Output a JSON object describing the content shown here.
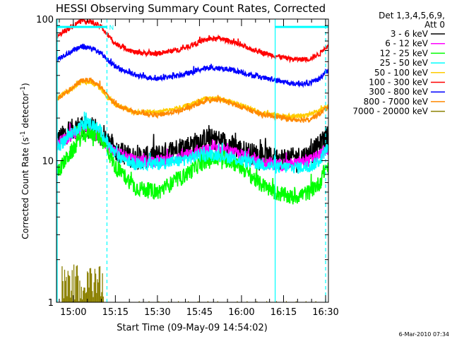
{
  "chart_data": {
    "type": "line",
    "title": "HESSI Observing Summary Count Rates, Corrected",
    "xlabel": "Start Time (09-May-09 14:54:02)",
    "ylabel": "Corrected Count Rate (s⁻¹ detector⁻¹)",
    "ylabel_parts": {
      "main": "Corrected Count Rate (s",
      "sup1": "-1",
      "mid": " detector",
      "sup2": "-1",
      "end": ")"
    },
    "yscale": "log",
    "ylim": [
      1,
      100
    ],
    "yticks": [
      1,
      10,
      100
    ],
    "ytick_labels": [
      "1",
      "10",
      "100"
    ],
    "xlim_minutes": [
      -6,
      91
    ],
    "xticks_minutes": [
      0,
      15,
      30,
      45,
      60,
      75,
      90
    ],
    "xtick_labels": [
      "15:00",
      "15:15",
      "15:30",
      "15:45",
      "16:00",
      "16:15",
      "16:30"
    ],
    "legend_header": [
      "Det 1,3,4,5,6,9,",
      "Att 0"
    ],
    "legend_position": "right",
    "footer_date": "6-Mar-2010 07:34",
    "marker_label": "N",
    "night_boundaries_minutes": [
      12,
      72,
      90
    ],
    "flag_bars": [
      {
        "from_minute": -6,
        "to_minute": 12,
        "y": 88
      },
      {
        "from_minute": 72,
        "to_minute": 91,
        "y": 88
      }
    ],
    "x_minutes": [
      -6,
      0,
      3,
      6,
      10,
      12,
      15,
      22,
      30,
      38,
      42,
      45,
      48,
      52,
      56,
      60,
      66,
      72,
      78,
      84,
      88,
      90
    ],
    "series": [
      {
        "name": "3 - 6 keV",
        "color": "#000000",
        "noise": 0.18,
        "values": [
          14,
          17,
          18,
          17,
          15,
          13.5,
          12,
          10.5,
          11,
          12.5,
          13,
          14,
          14.5,
          14,
          13,
          12,
          11,
          10.5,
          10.5,
          11,
          13,
          15
        ]
      },
      {
        "name": "6 - 12 keV",
        "color": "#ff00ff",
        "noise": 0.1,
        "values": [
          13,
          15.5,
          16.5,
          16,
          14.5,
          13,
          11.5,
          10,
          10,
          10.5,
          11,
          11.5,
          12,
          12,
          11.5,
          11,
          10,
          9.5,
          9.5,
          10,
          11,
          12
        ]
      },
      {
        "name": "12 - 25 keV",
        "color": "#00ff00",
        "noise": 0.13,
        "values": [
          8,
          12,
          15,
          16,
          14.5,
          12,
          9,
          6.5,
          6,
          7.5,
          8.5,
          9.5,
          10,
          10.5,
          10,
          9,
          7,
          6,
          5.5,
          6,
          7,
          9
        ]
      },
      {
        "name": "25 - 50 keV",
        "color": "#00ffff",
        "noise": 0.1,
        "values": [
          12,
          16,
          18,
          18.5,
          16,
          13.5,
          11,
          9.5,
          9.5,
          10,
          10.5,
          11,
          11,
          11,
          10.5,
          10,
          9.5,
          9,
          9,
          9,
          10,
          12
        ]
      },
      {
        "name": "50 - 100 keV",
        "color": "#ffcc00",
        "noise": 0.04,
        "values": [
          27,
          33,
          36,
          36,
          32,
          28,
          25,
          22,
          22,
          23.5,
          25,
          26.5,
          27.5,
          27.5,
          26,
          24.5,
          22,
          21,
          20.5,
          21,
          22.5,
          24
        ]
      },
      {
        "name": "100 - 300 keV",
        "color": "#ff0000",
        "noise": 0.04,
        "values": [
          75,
          90,
          98,
          96,
          88,
          78,
          67,
          58,
          57,
          61,
          65,
          69,
          72,
          73,
          70,
          65,
          59,
          55,
          52,
          52,
          57,
          64
        ]
      },
      {
        "name": "300 - 800 keV",
        "color": "#0000ff",
        "noise": 0.04,
        "values": [
          52,
          60,
          64,
          63,
          57,
          52,
          46,
          40,
          38,
          40,
          42,
          44,
          45,
          45,
          44,
          42,
          39,
          37,
          35,
          35,
          38,
          43
        ]
      },
      {
        "name": "800 - 7000 keV",
        "color": "#ff8800",
        "noise": 0.04,
        "values": [
          27,
          33,
          37,
          37,
          33,
          29,
          25,
          22,
          21,
          22.5,
          24,
          25.5,
          26.5,
          27,
          25.5,
          24,
          21.5,
          20.5,
          19.5,
          19.5,
          21.5,
          23.5
        ]
      },
      {
        "name": "7000 - 20000 keV",
        "color": "#8b8000",
        "noise": 0,
        "burst_from_minute": -4,
        "burst_to_minute": 11,
        "burst_low": 1.0,
        "burst_high": 1.85
      }
    ]
  }
}
